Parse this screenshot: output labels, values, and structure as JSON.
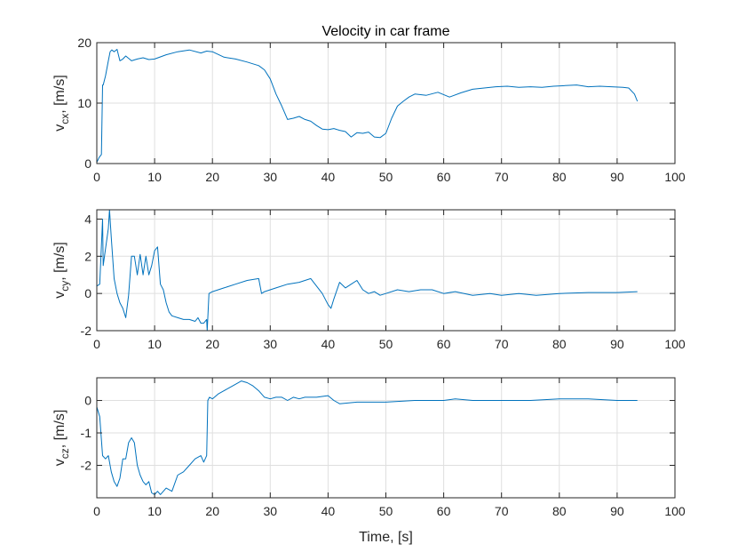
{
  "chart_data": {
    "type": "line",
    "title": "Velocity in car frame",
    "xlabel": "Time, [s]",
    "xlim": [
      0,
      100
    ],
    "xticks": [
      0,
      10,
      20,
      30,
      40,
      50,
      60,
      70,
      80,
      90,
      100
    ],
    "grid": true,
    "line_color": "#0072BD",
    "panels": [
      {
        "name": "vcx",
        "ylabel": {
          "main": "v",
          "sub": "cx",
          "rest": ", [m/s]"
        },
        "ylim": [
          0,
          20
        ],
        "yticks": [
          0,
          10,
          20
        ],
        "series": [
          {
            "x": [
              0,
              0.4,
              0.8,
              1.0,
              1.1,
              1.5,
              2.0,
              2.3,
              2.6,
              3.0,
              3.5,
              4.0,
              4.5,
              5.0,
              6,
              7,
              8,
              9,
              10,
              12,
              14,
              16,
              18,
              19,
              20,
              22,
              24,
              26,
              28,
              29,
              30,
              31,
              32,
              33,
              34,
              35,
              36,
              37,
              38,
              39,
              40,
              41,
              42,
              43,
              44,
              45,
              46,
              47,
              48,
              49,
              50,
              51,
              52,
              53,
              54,
              55,
              57,
              59,
              61,
              63,
              65,
              67,
              69,
              71,
              73,
              75,
              77,
              79,
              81,
              83,
              85,
              87,
              89,
              91,
              92,
              93,
              93.5
            ],
            "y": [
              0.2,
              1.0,
              1.5,
              13.0,
              13.0,
              14.5,
              17.0,
              18.5,
              18.8,
              18.5,
              18.9,
              17.0,
              17.3,
              17.8,
              17.0,
              17.3,
              17.5,
              17.2,
              17.3,
              18.0,
              18.5,
              18.8,
              18.3,
              18.6,
              18.5,
              17.6,
              17.3,
              16.8,
              16.2,
              15.5,
              14.0,
              11.5,
              9.5,
              7.3,
              7.5,
              7.8,
              7.3,
              7.0,
              6.3,
              5.7,
              5.6,
              5.8,
              5.5,
              5.3,
              4.4,
              5.1,
              5.0,
              5.2,
              4.4,
              4.3,
              5.0,
              7.5,
              9.5,
              10.3,
              11.0,
              11.5,
              11.3,
              11.8,
              11.0,
              11.7,
              12.3,
              12.5,
              12.7,
              12.8,
              12.6,
              12.7,
              12.6,
              12.8,
              12.9,
              13.0,
              12.7,
              12.8,
              12.7,
              12.6,
              12.5,
              11.5,
              10.3
            ]
          }
        ]
      },
      {
        "name": "vcy",
        "ylabel": {
          "main": "v",
          "sub": "cy",
          "rest": ", [m/s]"
        },
        "ylim": [
          -2,
          4.5
        ],
        "yticks": [
          -2,
          0,
          2,
          4
        ],
        "series": [
          {
            "x": [
              0,
              0.5,
              1.0,
              1.1,
              2.0,
              2.2,
              2.5,
              3.0,
              3.5,
              4.0,
              4.5,
              5.0,
              5.5,
              6.0,
              6.5,
              7.0,
              7.5,
              8.0,
              8.5,
              9.0,
              9.5,
              10.0,
              10.5,
              11.0,
              11.5,
              12.0,
              12.5,
              13.0,
              14,
              15,
              16,
              17,
              17.5,
              18,
              18.5,
              19,
              19.1,
              19.4,
              20,
              22,
              24,
              26,
              28,
              28.5,
              29,
              31,
              33,
              35,
              37,
              38,
              39,
              40,
              40.5,
              41,
              42,
              43,
              44,
              45,
              46,
              47,
              48,
              49,
              50,
              52,
              54,
              56,
              58,
              60,
              62,
              65,
              68,
              70,
              73,
              76,
              80,
              85,
              90,
              93.5
            ],
            "y": [
              0.4,
              0.5,
              4.0,
              1.5,
              3.5,
              4.5,
              3.0,
              0.8,
              0.0,
              -0.5,
              -0.8,
              -1.3,
              -0.1,
              2.0,
              2.0,
              1.0,
              2.1,
              1.0,
              2.0,
              1.0,
              1.5,
              2.3,
              2.5,
              0.5,
              0.2,
              -0.5,
              -1.0,
              -1.2,
              -1.3,
              -1.4,
              -1.4,
              -1.5,
              -1.3,
              -1.6,
              -1.6,
              -1.4,
              -2.0,
              0.0,
              0.1,
              0.3,
              0.5,
              0.7,
              0.8,
              0.0,
              0.1,
              0.3,
              0.5,
              0.6,
              0.8,
              0.4,
              0.0,
              -0.6,
              -0.8,
              -0.3,
              0.6,
              0.3,
              0.5,
              0.7,
              0.2,
              0.0,
              0.1,
              -0.1,
              0.0,
              0.2,
              0.1,
              0.2,
              0.2,
              0.0,
              0.1,
              -0.1,
              0.0,
              -0.1,
              0.0,
              -0.1,
              0.0,
              0.05,
              0.05,
              0.1
            ]
          }
        ]
      },
      {
        "name": "vcz",
        "ylabel": {
          "main": "v",
          "sub": "cz",
          "rest": ", [m/s]"
        },
        "ylim": [
          -3,
          0.7
        ],
        "yticks": [
          -2,
          -1,
          0
        ],
        "series": [
          {
            "x": [
              0,
              0.5,
              1.0,
              1.5,
              2.0,
              2.5,
              3.0,
              3.5,
              4.0,
              4.5,
              5.0,
              5.5,
              6.0,
              6.5,
              7.0,
              7.5,
              8.0,
              8.5,
              9.0,
              9.5,
              10.0,
              10.5,
              11.0,
              12.0,
              13.0,
              14.0,
              15.0,
              16.0,
              17.0,
              18.0,
              18.5,
              19.0,
              19.2,
              19.5,
              20,
              21,
              22,
              23,
              24,
              25,
              26,
              27,
              28,
              29,
              30,
              31,
              32,
              33,
              34,
              35,
              36,
              38,
              40,
              41,
              42,
              45,
              48,
              50,
              55,
              60,
              62,
              65,
              70,
              75,
              80,
              85,
              90,
              93.5
            ],
            "y": [
              -0.2,
              -0.5,
              -1.7,
              -1.8,
              -1.7,
              -2.2,
              -2.5,
              -2.65,
              -2.4,
              -1.8,
              -1.8,
              -1.3,
              -1.15,
              -1.3,
              -2.0,
              -2.3,
              -2.5,
              -2.6,
              -2.5,
              -2.85,
              -2.9,
              -2.8,
              -2.9,
              -2.7,
              -2.8,
              -2.3,
              -2.2,
              -2.0,
              -1.8,
              -1.7,
              -1.9,
              -1.7,
              0.0,
              0.1,
              0.05,
              0.2,
              0.3,
              0.4,
              0.5,
              0.6,
              0.55,
              0.45,
              0.3,
              0.1,
              0.05,
              0.1,
              0.1,
              0.0,
              0.1,
              0.05,
              0.1,
              0.1,
              0.15,
              0.0,
              -0.1,
              -0.05,
              -0.05,
              -0.05,
              0.0,
              0.0,
              0.05,
              0.0,
              0.0,
              0.0,
              0.05,
              0.05,
              0.0,
              0.0
            ]
          }
        ]
      }
    ]
  }
}
